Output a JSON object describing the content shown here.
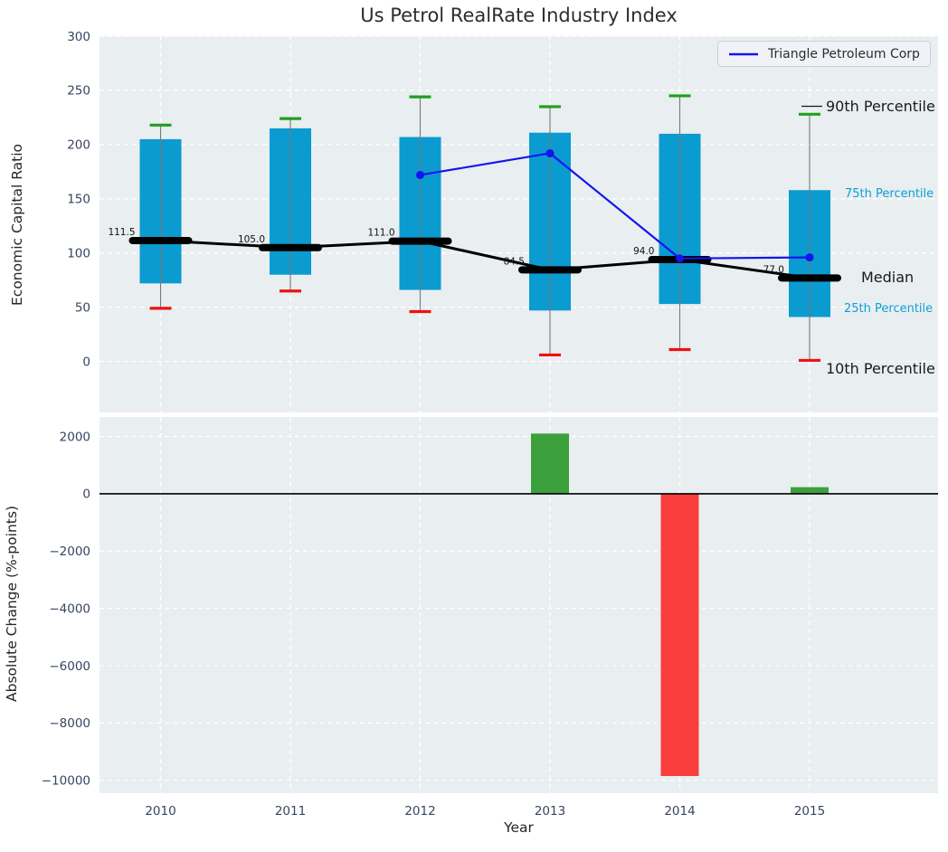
{
  "title": "Us Petrol RealRate Industry Index",
  "legend": {
    "series_label": "Triangle Petroleum Corp"
  },
  "percentile_labels": {
    "p90": "90th Percentile",
    "p75": "75th Percentile",
    "median": "Median",
    "p25": "25th Percentile",
    "p10": "10th Percentile"
  },
  "colors": {
    "box": "#0a9bd1",
    "whisker_line": "#777777",
    "cap_top": "#1fa01f",
    "cap_bottom": "#ee1111",
    "median_line": "#000000",
    "company_line": "#1414ee",
    "bar_positive": "#3ca03c",
    "bar_negative": "#fa3e3e",
    "plot_background": "#e9eef0",
    "grid": "#ffffff",
    "tick_text": "#36455f",
    "annotation_text": "#111111",
    "zero_line": "#000000"
  },
  "chart_data": [
    {
      "type": "box",
      "title": "Us Petrol RealRate Industry Index",
      "ylabel": "Economic Capital Ratio",
      "categories": [
        "2010",
        "2011",
        "2012",
        "2013",
        "2014",
        "2015"
      ],
      "ylim": [
        -47,
        300
      ],
      "yticks": [
        0,
        50,
        100,
        150,
        200,
        250,
        300
      ],
      "grid": true,
      "legend_position": "upper right",
      "series": [
        {
          "name": "90th Percentile",
          "values": [
            218,
            224,
            244,
            235,
            245,
            228
          ]
        },
        {
          "name": "75th Percentile",
          "values": [
            205,
            215,
            207,
            211,
            210,
            158
          ]
        },
        {
          "name": "Median",
          "values": [
            111.5,
            105.0,
            111.0,
            84.5,
            94.0,
            77.0
          ]
        },
        {
          "name": "25th Percentile",
          "values": [
            72,
            80,
            66,
            47,
            53,
            41
          ]
        },
        {
          "name": "10th Percentile",
          "values": [
            49,
            65,
            46,
            6,
            11,
            1
          ]
        },
        {
          "name": "Triangle Petroleum Corp",
          "x": [
            "2012",
            "2013",
            "2014",
            "2015"
          ],
          "values": [
            172,
            192,
            95,
            96
          ]
        }
      ],
      "median_annotations": [
        "111.5",
        "105.0",
        "111.0",
        "84.5",
        "94.0",
        "77.0"
      ]
    },
    {
      "type": "bar",
      "xlabel": "Year",
      "ylabel": "Absolute Change (%-points)",
      "categories": [
        "2010",
        "2011",
        "2012",
        "2013",
        "2014",
        "2015"
      ],
      "values": [
        null,
        null,
        null,
        2100,
        -9850,
        230
      ],
      "ylim": [
        -10450,
        2680
      ],
      "yticks": [
        2000,
        0,
        -2000,
        -4000,
        -6000,
        -8000,
        -10000
      ],
      "grid": true,
      "zero_line": true
    }
  ]
}
